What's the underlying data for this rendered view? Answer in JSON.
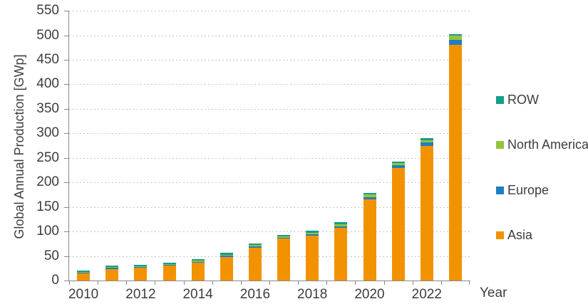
{
  "chart_data": {
    "type": "bar",
    "stacked": true,
    "title": "",
    "xlabel": "Year",
    "ylabel": "Global Annual Production [GWp]",
    "ylim": [
      0,
      550
    ],
    "ytick_step": 50,
    "grid": "horizontal-dashed",
    "legend_position": "right",
    "categories": [
      "2010",
      "2011",
      "2012",
      "2013",
      "2014",
      "2015",
      "2016",
      "2017",
      "2018",
      "2019",
      "2020",
      "2021",
      "2022",
      "2023"
    ],
    "x_axis_labeled_categories": [
      "2010",
      "2012",
      "2014",
      "2016",
      "2018",
      "2020",
      "2022"
    ],
    "series": [
      {
        "name": "Asia",
        "color": "#F39200",
        "values": [
          14,
          24,
          26,
          30,
          36,
          48,
          67,
          85,
          92,
          108,
          165,
          230,
          275,
          481
        ]
      },
      {
        "name": "Europe",
        "color": "#1F7EC1",
        "values": [
          2.5,
          2.5,
          2,
          2,
          2,
          2.5,
          2.5,
          2.5,
          2.5,
          3,
          5,
          4.5,
          6,
          10
        ]
      },
      {
        "name": "North America",
        "color": "#96C33C",
        "values": [
          1.5,
          1.5,
          1.5,
          2,
          2,
          2.5,
          2.5,
          2.5,
          3,
          4,
          5.5,
          5,
          5.5,
          8
        ]
      },
      {
        "name": "ROW",
        "color": "#159E8A",
        "values": [
          2,
          2.5,
          2.5,
          3,
          3,
          3,
          3,
          3.5,
          3.5,
          4,
          3.5,
          3.5,
          3.5,
          3.5
        ]
      }
    ],
    "totals": [
      20,
      30.5,
      32,
      37,
      43,
      56,
      75,
      93.5,
      101,
      119,
      179,
      243,
      290,
      502.5
    ],
    "legend_order": [
      "ROW",
      "North America",
      "Europe",
      "Asia"
    ],
    "colors": {
      "asia_orange": "#F39200",
      "europe_blue": "#1F7EC1",
      "north_america_green": "#96C33C",
      "row_teal": "#159E8A",
      "gridline_gray": "#C7C7C7",
      "axis_gray": "#8A8A8A",
      "text_gray": "#3D3D3D"
    }
  }
}
